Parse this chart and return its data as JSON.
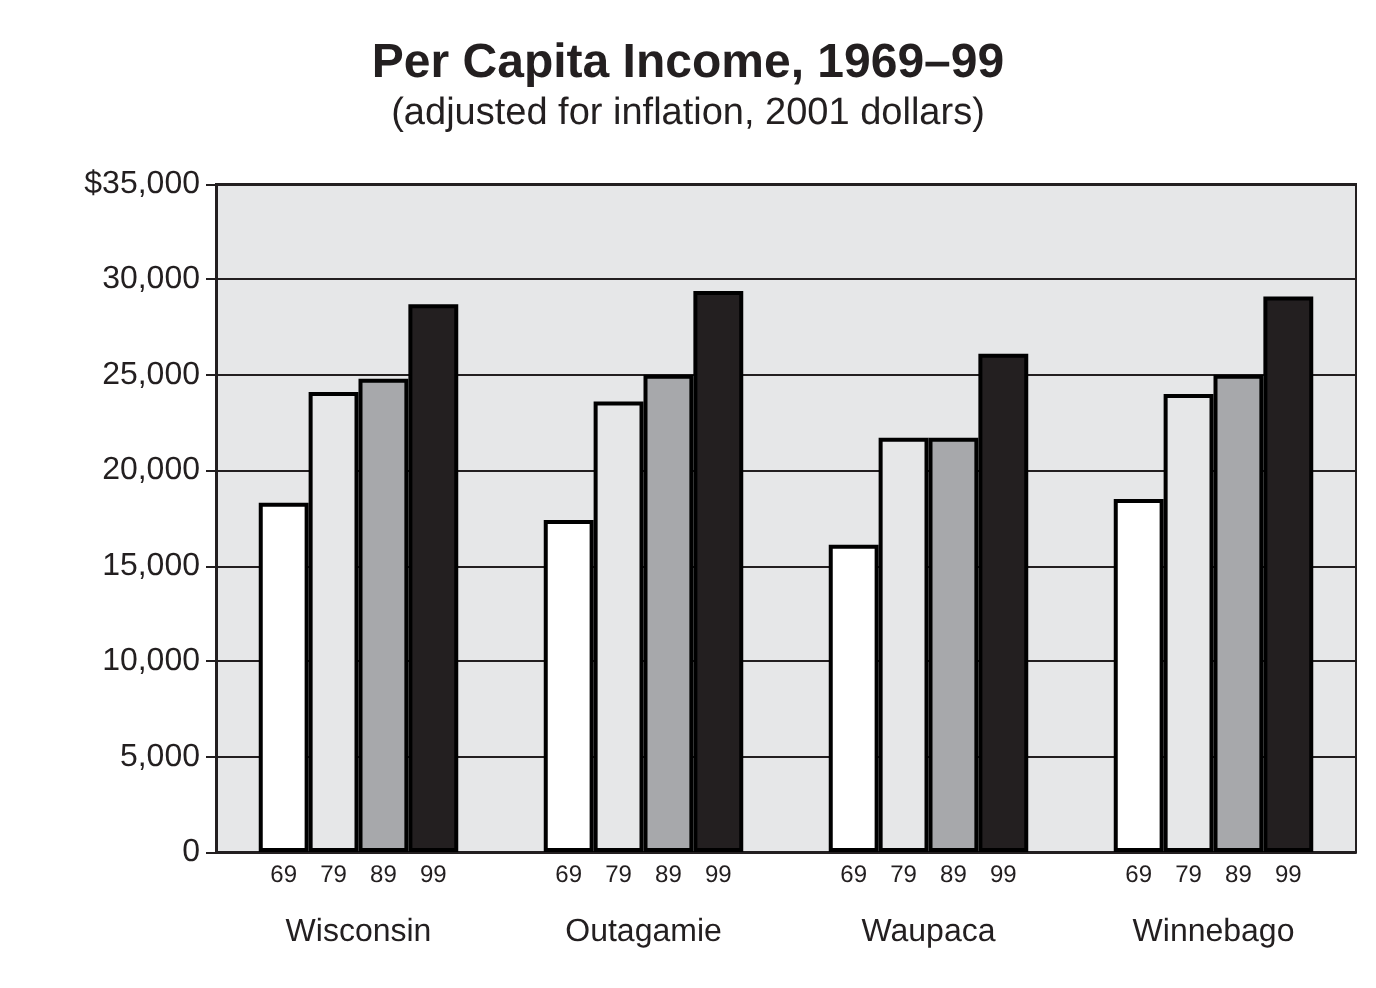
{
  "chart_data": {
    "type": "bar",
    "title": "Per Capita Income, 1969–99",
    "subtitle": "(adjusted for inflation, 2001 dollars)",
    "categories": [
      "Wisconsin",
      "Outagamie",
      "Waupaca",
      "Winnebago"
    ],
    "series": [
      {
        "name": "69",
        "color": "#ffffff",
        "values": [
          18300,
          17400,
          16100,
          18500
        ]
      },
      {
        "name": "79",
        "color": "#e6e7e8",
        "values": [
          24100,
          23600,
          21700,
          24000
        ]
      },
      {
        "name": "89",
        "color": "#a7a8ab",
        "values": [
          24800,
          25000,
          21700,
          25000
        ]
      },
      {
        "name": "99",
        "color": "#231f20",
        "values": [
          28700,
          29400,
          26100,
          29100
        ]
      }
    ],
    "ylim": [
      0,
      35000
    ],
    "yticks": [
      {
        "value": 0,
        "label": "0"
      },
      {
        "value": 5000,
        "label": "5,000"
      },
      {
        "value": 10000,
        "label": "10,000"
      },
      {
        "value": 15000,
        "label": "15,000"
      },
      {
        "value": 20000,
        "label": "20,000"
      },
      {
        "value": 25000,
        "label": "25,000"
      },
      {
        "value": 30000,
        "label": "30,000"
      },
      {
        "value": 35000,
        "label": "$35,000"
      }
    ],
    "grid": "y",
    "legend": false
  }
}
